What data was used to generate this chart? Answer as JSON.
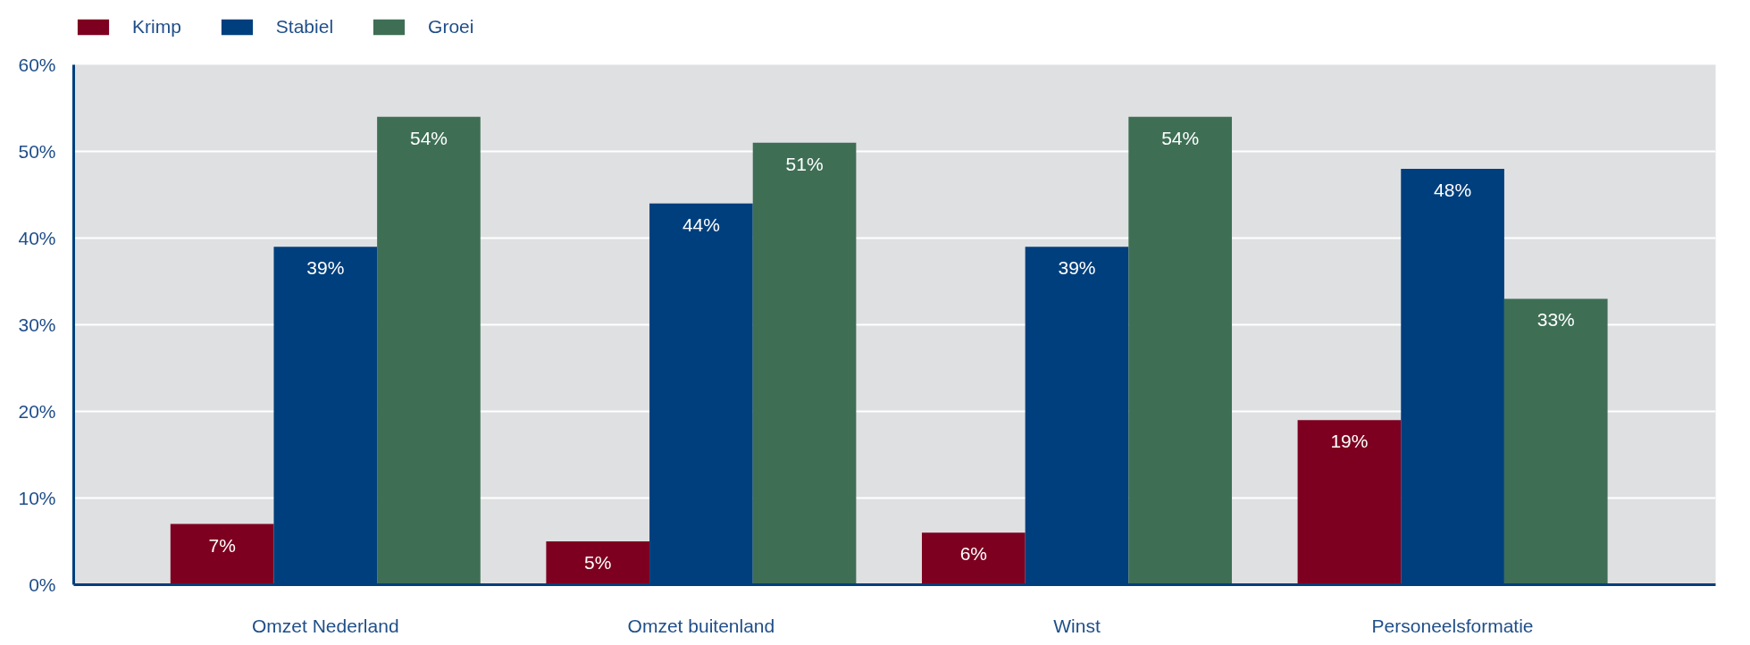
{
  "chart_data": {
    "type": "bar",
    "categories": [
      "Omzet Nederland",
      "Omzet buitenland",
      "Winst",
      "Personeelsformatie"
    ],
    "series": [
      {
        "name": "Krimp",
        "color": "#7d0020",
        "values": [
          7,
          5,
          6,
          19
        ],
        "value_labels": [
          "7%",
          "5%",
          "6%",
          "19%"
        ]
      },
      {
        "name": "Stabiel",
        "color": "#003f7d",
        "values": [
          39,
          44,
          39,
          48
        ],
        "value_labels": [
          "39%",
          "44%",
          "39%",
          "48%"
        ]
      },
      {
        "name": "Groei",
        "color": "#3e6f55",
        "values": [
          54,
          51,
          54,
          33
        ],
        "value_labels": [
          "54%",
          "51%",
          "54%",
          "33%"
        ]
      }
    ],
    "ylim": [
      0,
      60
    ],
    "yticks": [
      {
        "value": 0,
        "label": "0%"
      },
      {
        "value": 10,
        "label": "10%"
      },
      {
        "value": 20,
        "label": "20%"
      },
      {
        "value": 30,
        "label": "30%"
      },
      {
        "value": 40,
        "label": "40%"
      },
      {
        "value": 50,
        "label": "50%"
      },
      {
        "value": 60,
        "label": "60%"
      }
    ],
    "grid": "y",
    "legend": "top left"
  }
}
